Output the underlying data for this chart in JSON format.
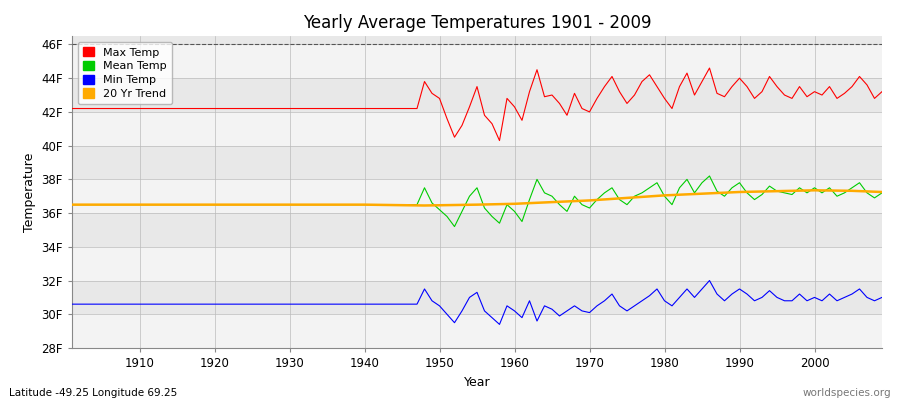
{
  "title": "Yearly Average Temperatures 1901 - 2009",
  "xlabel": "Year",
  "ylabel": "Temperature",
  "subtitle_left": "Latitude -49.25 Longitude 69.25",
  "subtitle_right": "worldspecies.org",
  "ylim": [
    28,
    46.5
  ],
  "yticks": [
    28,
    30,
    32,
    34,
    36,
    38,
    40,
    42,
    44,
    46
  ],
  "ytick_labels": [
    "28F",
    "30F",
    "32F",
    "34F",
    "36F",
    "38F",
    "40F",
    "42F",
    "44F",
    "46F"
  ],
  "xlim": [
    1901,
    2009
  ],
  "xticks": [
    1910,
    1920,
    1930,
    1940,
    1950,
    1960,
    1970,
    1980,
    1990,
    2000
  ],
  "fig_bg_color": "#ffffff",
  "plot_bg_color": "#e8e8e8",
  "legend_items": [
    "Max Temp",
    "Mean Temp",
    "Min Temp",
    "20 Yr Trend"
  ],
  "legend_colors": [
    "#ff0000",
    "#00cc00",
    "#0000ff",
    "#ffaa00"
  ],
  "max_temps": [
    42.2,
    42.2,
    42.2,
    42.2,
    42.2,
    42.2,
    42.2,
    42.2,
    42.2,
    42.2,
    42.2,
    42.2,
    42.2,
    42.2,
    42.2,
    42.2,
    42.2,
    42.2,
    42.2,
    42.2,
    42.2,
    42.2,
    42.2,
    42.2,
    42.2,
    42.2,
    42.2,
    42.2,
    42.2,
    42.2,
    42.2,
    42.2,
    42.2,
    42.2,
    42.2,
    42.2,
    42.2,
    42.2,
    42.2,
    42.2,
    42.2,
    42.2,
    42.2,
    42.2,
    42.2,
    42.2,
    42.2,
    43.8,
    43.1,
    42.8,
    41.6,
    40.5,
    41.2,
    42.3,
    43.5,
    41.8,
    41.3,
    40.3,
    42.8,
    42.3,
    41.5,
    43.2,
    44.5,
    42.9,
    43.0,
    42.5,
    41.8,
    43.1,
    42.2,
    42.0,
    42.8,
    43.5,
    44.1,
    43.2,
    42.5,
    43.0,
    43.8,
    44.2,
    43.5,
    42.8,
    42.2,
    43.5,
    44.3,
    43.0,
    43.8,
    44.6,
    43.1,
    42.9,
    43.5,
    44.0,
    43.5,
    42.8,
    43.2,
    44.1,
    43.5,
    43.0,
    42.8,
    43.5,
    42.9,
    43.2,
    43.0,
    43.5,
    42.8,
    43.1,
    43.5,
    44.1,
    43.6,
    42.8,
    43.2
  ],
  "mean_temps": [
    36.5,
    36.5,
    36.5,
    36.5,
    36.5,
    36.5,
    36.5,
    36.5,
    36.5,
    36.5,
    36.5,
    36.5,
    36.5,
    36.5,
    36.5,
    36.5,
    36.5,
    36.5,
    36.5,
    36.5,
    36.5,
    36.5,
    36.5,
    36.5,
    36.5,
    36.5,
    36.5,
    36.5,
    36.5,
    36.5,
    36.5,
    36.5,
    36.5,
    36.5,
    36.5,
    36.5,
    36.5,
    36.5,
    36.5,
    36.5,
    36.5,
    36.5,
    36.5,
    36.5,
    36.5,
    36.5,
    36.5,
    37.5,
    36.6,
    36.2,
    35.8,
    35.2,
    36.1,
    37.0,
    37.5,
    36.3,
    35.8,
    35.4,
    36.5,
    36.1,
    35.5,
    36.8,
    38.0,
    37.2,
    37.0,
    36.5,
    36.1,
    37.0,
    36.5,
    36.3,
    36.8,
    37.2,
    37.5,
    36.8,
    36.5,
    37.0,
    37.2,
    37.5,
    37.8,
    37.0,
    36.5,
    37.5,
    38.0,
    37.2,
    37.8,
    38.2,
    37.3,
    37.0,
    37.5,
    37.8,
    37.2,
    36.8,
    37.1,
    37.6,
    37.3,
    37.2,
    37.1,
    37.5,
    37.2,
    37.5,
    37.2,
    37.5,
    37.0,
    37.2,
    37.5,
    37.8,
    37.2,
    36.9,
    37.2
  ],
  "min_temps": [
    30.6,
    30.6,
    30.6,
    30.6,
    30.6,
    30.6,
    30.6,
    30.6,
    30.6,
    30.6,
    30.6,
    30.6,
    30.6,
    30.6,
    30.6,
    30.6,
    30.6,
    30.6,
    30.6,
    30.6,
    30.6,
    30.6,
    30.6,
    30.6,
    30.6,
    30.6,
    30.6,
    30.6,
    30.6,
    30.6,
    30.6,
    30.6,
    30.6,
    30.6,
    30.6,
    30.6,
    30.6,
    30.6,
    30.6,
    30.6,
    30.6,
    30.6,
    30.6,
    30.6,
    30.6,
    30.6,
    30.6,
    31.5,
    30.8,
    30.5,
    30.0,
    29.5,
    30.2,
    31.0,
    31.3,
    30.2,
    29.8,
    29.4,
    30.5,
    30.2,
    29.8,
    30.8,
    29.6,
    30.5,
    30.3,
    29.9,
    30.2,
    30.5,
    30.2,
    30.1,
    30.5,
    30.8,
    31.2,
    30.5,
    30.2,
    30.5,
    30.8,
    31.1,
    31.5,
    30.8,
    30.5,
    31.0,
    31.5,
    31.0,
    31.5,
    32.0,
    31.2,
    30.8,
    31.2,
    31.5,
    31.2,
    30.8,
    31.0,
    31.4,
    31.0,
    30.8,
    30.8,
    31.2,
    30.8,
    31.0,
    30.8,
    31.2,
    30.8,
    31.0,
    31.2,
    31.5,
    31.0,
    30.8,
    31.0
  ],
  "trend_years": [
    1901,
    1910,
    1920,
    1930,
    1940,
    1948,
    1955,
    1960,
    1965,
    1970,
    1975,
    1980,
    1985,
    1990,
    1995,
    2000,
    2005,
    2009
  ],
  "trend_vals": [
    36.5,
    36.5,
    36.5,
    36.5,
    36.5,
    36.45,
    36.5,
    36.55,
    36.65,
    36.75,
    36.9,
    37.05,
    37.15,
    37.25,
    37.3,
    37.35,
    37.32,
    37.25
  ]
}
